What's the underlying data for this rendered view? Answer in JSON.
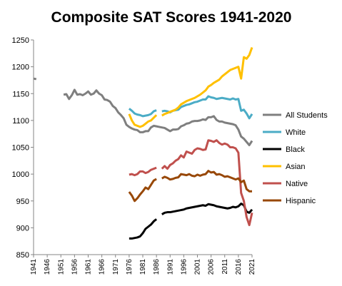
{
  "chart_data": {
    "type": "line",
    "title": "Composite SAT Scores 1941-2020",
    "xlabel": "",
    "ylabel": "",
    "xlim": [
      1941,
      2021
    ],
    "ylim": [
      850,
      1250
    ],
    "y_ticks": [
      "850",
      "900",
      "950",
      "1000",
      "1050",
      "1100",
      "1150",
      "1200",
      "1250"
    ],
    "x_ticks": [
      "1941",
      "1946",
      "1951",
      "1956",
      "1961",
      "1966",
      "1971",
      "1976",
      "1981",
      "1986",
      "1991",
      "1996",
      "2001",
      "2006",
      "2011",
      "2016",
      "2021"
    ],
    "grid": false,
    "legend_position": "right",
    "series": [
      {
        "name": "All Students",
        "color": "#7f7f7f",
        "points": [
          [
            1941,
            1178
          ],
          [
            1942,
            1177
          ],
          null,
          [
            1952,
            1148
          ],
          [
            1953,
            1149
          ],
          [
            1954,
            1140
          ],
          [
            1955,
            1147
          ],
          [
            1956,
            1157
          ],
          [
            1957,
            1148
          ],
          [
            1958,
            1149
          ],
          [
            1959,
            1147
          ],
          [
            1960,
            1150
          ],
          [
            1961,
            1154
          ],
          [
            1962,
            1148
          ],
          [
            1963,
            1150
          ],
          [
            1964,
            1156
          ],
          [
            1965,
            1150
          ],
          [
            1966,
            1147
          ],
          [
            1967,
            1139
          ],
          [
            1968,
            1138
          ],
          [
            1969,
            1135
          ],
          [
            1970,
            1127
          ],
          [
            1971,
            1123
          ],
          [
            1972,
            1115
          ],
          [
            1973,
            1110
          ],
          [
            1974,
            1104
          ],
          [
            1975,
            1092
          ],
          [
            1976,
            1088
          ],
          [
            1977,
            1085
          ],
          [
            1978,
            1083
          ],
          [
            1979,
            1082
          ],
          [
            1980,
            1078
          ],
          [
            1981,
            1078
          ],
          [
            1982,
            1080
          ],
          [
            1983,
            1080
          ],
          [
            1984,
            1087
          ],
          [
            1985,
            1090
          ],
          [
            1986,
            1089
          ],
          [
            1987,
            1088
          ],
          [
            1988,
            1087
          ],
          [
            1989,
            1086
          ],
          [
            1990,
            1083
          ],
          [
            1991,
            1080
          ],
          [
            1992,
            1083
          ],
          [
            1993,
            1083
          ],
          [
            1994,
            1084
          ],
          [
            1995,
            1089
          ],
          [
            1996,
            1091
          ],
          [
            1997,
            1094
          ],
          [
            1998,
            1095
          ],
          [
            1999,
            1098
          ],
          [
            2000,
            1099
          ],
          [
            2001,
            1099
          ],
          [
            2002,
            1100
          ],
          [
            2003,
            1102
          ],
          [
            2004,
            1101
          ],
          [
            2005,
            1106
          ],
          [
            2006,
            1106
          ],
          [
            2007,
            1108
          ],
          [
            2008,
            1101
          ],
          [
            2009,
            1098
          ],
          [
            2010,
            1098
          ],
          [
            2011,
            1096
          ],
          [
            2012,
            1095
          ],
          [
            2013,
            1094
          ],
          [
            2014,
            1093
          ],
          [
            2015,
            1091
          ],
          [
            2016,
            1083
          ],
          [
            2017,
            1070
          ],
          [
            2018,
            1066
          ],
          [
            2019,
            1060
          ],
          [
            2020,
            1054
          ],
          [
            2021,
            1062
          ]
        ]
      },
      {
        "name": "White",
        "color": "#4bacc6",
        "points": [
          [
            1976,
            1122
          ],
          [
            1977,
            1118
          ],
          [
            1978,
            1113
          ],
          [
            1979,
            1111
          ],
          [
            1980,
            1110
          ],
          [
            1981,
            1108
          ],
          [
            1982,
            1109
          ],
          [
            1983,
            1110
          ],
          [
            1984,
            1112
          ],
          [
            1985,
            1117
          ],
          [
            1986,
            1119
          ],
          null,
          [
            1988,
            1117
          ],
          [
            1989,
            1118
          ],
          [
            1990,
            1117
          ],
          [
            1991,
            1115
          ],
          [
            1992,
            1118
          ],
          [
            1993,
            1119
          ],
          [
            1994,
            1120
          ],
          [
            1995,
            1125
          ],
          [
            1996,
            1127
          ],
          [
            1997,
            1129
          ],
          [
            1998,
            1130
          ],
          [
            1999,
            1132
          ],
          [
            2000,
            1134
          ],
          [
            2001,
            1135
          ],
          [
            2002,
            1137
          ],
          [
            2003,
            1139
          ],
          [
            2004,
            1139
          ],
          [
            2005,
            1145
          ],
          [
            2006,
            1143
          ],
          [
            2007,
            1142
          ],
          [
            2008,
            1140
          ],
          [
            2009,
            1141
          ],
          [
            2010,
            1142
          ],
          [
            2011,
            1141
          ],
          [
            2012,
            1140
          ],
          [
            2013,
            1139
          ],
          [
            2014,
            1141
          ],
          [
            2015,
            1139
          ],
          [
            2016,
            1140
          ],
          [
            2017,
            1118
          ],
          [
            2018,
            1120
          ],
          [
            2019,
            1113
          ],
          [
            2020,
            1104
          ],
          [
            2021,
            1112
          ]
        ]
      },
      {
        "name": "Black",
        "color": "#000000",
        "points": [
          [
            1976,
            880
          ],
          [
            1977,
            880
          ],
          [
            1978,
            881
          ],
          [
            1979,
            882
          ],
          [
            1980,
            884
          ],
          [
            1981,
            890
          ],
          [
            1982,
            898
          ],
          [
            1983,
            902
          ],
          [
            1984,
            906
          ],
          [
            1985,
            912
          ],
          [
            1986,
            916
          ],
          null,
          [
            1988,
            925
          ],
          [
            1989,
            928
          ],
          [
            1990,
            929
          ],
          [
            1991,
            929
          ],
          [
            1992,
            930
          ],
          [
            1993,
            931
          ],
          [
            1994,
            932
          ],
          [
            1995,
            933
          ],
          [
            1996,
            934
          ],
          [
            1997,
            936
          ],
          [
            1998,
            937
          ],
          [
            1999,
            938
          ],
          [
            2000,
            939
          ],
          [
            2001,
            940
          ],
          [
            2002,
            941
          ],
          [
            2003,
            942
          ],
          [
            2004,
            941
          ],
          [
            2005,
            944
          ],
          [
            2006,
            943
          ],
          [
            2007,
            942
          ],
          [
            2008,
            940
          ],
          [
            2009,
            939
          ],
          [
            2010,
            938
          ],
          [
            2011,
            937
          ],
          [
            2012,
            936
          ],
          [
            2013,
            937
          ],
          [
            2014,
            939
          ],
          [
            2015,
            938
          ],
          [
            2016,
            940
          ],
          [
            2017,
            945
          ],
          [
            2018,
            942
          ],
          [
            2019,
            930
          ],
          [
            2020,
            928
          ],
          [
            2021,
            934
          ]
        ]
      },
      {
        "name": "Asian",
        "color": "#ffc000",
        "points": [
          [
            1976,
            1112
          ],
          [
            1977,
            1100
          ],
          [
            1978,
            1092
          ],
          [
            1979,
            1090
          ],
          [
            1980,
            1088
          ],
          [
            1981,
            1090
          ],
          [
            1982,
            1094
          ],
          [
            1983,
            1098
          ],
          [
            1984,
            1100
          ],
          [
            1985,
            1105
          ],
          [
            1986,
            1110
          ],
          null,
          [
            1988,
            1109
          ],
          [
            1989,
            1112
          ],
          [
            1990,
            1114
          ],
          [
            1991,
            1116
          ],
          [
            1992,
            1118
          ],
          [
            1993,
            1120
          ],
          [
            1994,
            1124
          ],
          [
            1995,
            1130
          ],
          [
            1996,
            1133
          ],
          [
            1997,
            1136
          ],
          [
            1998,
            1138
          ],
          [
            1999,
            1140
          ],
          [
            2000,
            1142
          ],
          [
            2001,
            1145
          ],
          [
            2002,
            1148
          ],
          [
            2003,
            1152
          ],
          [
            2004,
            1156
          ],
          [
            2005,
            1163
          ],
          [
            2006,
            1166
          ],
          [
            2007,
            1170
          ],
          [
            2008,
            1173
          ],
          [
            2009,
            1176
          ],
          [
            2010,
            1182
          ],
          [
            2011,
            1186
          ],
          [
            2012,
            1190
          ],
          [
            2013,
            1194
          ],
          [
            2014,
            1196
          ],
          [
            2015,
            1198
          ],
          [
            2016,
            1200
          ],
          [
            2017,
            1178
          ],
          [
            2018,
            1218
          ],
          [
            2019,
            1215
          ],
          [
            2020,
            1222
          ],
          [
            2021,
            1236
          ]
        ]
      },
      {
        "name": "Native",
        "color": "#c0504d",
        "points": [
          [
            1976,
            999
          ],
          [
            1977,
            1000
          ],
          [
            1978,
            998
          ],
          [
            1979,
            1000
          ],
          [
            1980,
            1005
          ],
          [
            1981,
            1005
          ],
          [
            1982,
            1002
          ],
          [
            1983,
            1004
          ],
          [
            1984,
            1008
          ],
          [
            1985,
            1010
          ],
          [
            1986,
            1012
          ],
          null,
          [
            1988,
            1010
          ],
          [
            1989,
            1015
          ],
          [
            1990,
            1010
          ],
          [
            1991,
            1017
          ],
          [
            1992,
            1020
          ],
          [
            1993,
            1025
          ],
          [
            1994,
            1028
          ],
          [
            1995,
            1035
          ],
          [
            1996,
            1031
          ],
          [
            1997,
            1042
          ],
          [
            1998,
            1040
          ],
          [
            1999,
            1038
          ],
          [
            2000,
            1045
          ],
          [
            2001,
            1048
          ],
          [
            2002,
            1047
          ],
          [
            2003,
            1045
          ],
          [
            2004,
            1046
          ],
          [
            2005,
            1063
          ],
          [
            2006,
            1062
          ],
          [
            2007,
            1060
          ],
          [
            2008,
            1063
          ],
          [
            2009,
            1058
          ],
          [
            2010,
            1055
          ],
          [
            2011,
            1057
          ],
          [
            2012,
            1055
          ],
          [
            2013,
            1050
          ],
          [
            2014,
            1050
          ],
          [
            2015,
            1048
          ],
          [
            2016,
            1040
          ],
          [
            2017,
            965
          ],
          [
            2018,
            950
          ],
          [
            2019,
            920
          ],
          [
            2020,
            905
          ],
          [
            2021,
            928
          ]
        ]
      },
      {
        "name": "Hispanic",
        "color": "#984807",
        "points": [
          [
            1976,
            967
          ],
          [
            1977,
            960
          ],
          [
            1978,
            950
          ],
          [
            1979,
            955
          ],
          [
            1980,
            962
          ],
          [
            1981,
            968
          ],
          [
            1982,
            975
          ],
          [
            1983,
            972
          ],
          [
            1984,
            980
          ],
          [
            1985,
            988
          ],
          [
            1986,
            991
          ],
          null,
          [
            1988,
            992
          ],
          [
            1989,
            995
          ],
          [
            1990,
            993
          ],
          [
            1991,
            990
          ],
          [
            1992,
            991
          ],
          [
            1993,
            993
          ],
          [
            1994,
            994
          ],
          [
            1995,
            1000
          ],
          [
            1996,
            999
          ],
          [
            1997,
            998
          ],
          [
            1998,
            1000
          ],
          [
            1999,
            997
          ],
          [
            2000,
            996
          ],
          [
            2001,
            999
          ],
          [
            2002,
            997
          ],
          [
            2003,
            999
          ],
          [
            2004,
            1000
          ],
          [
            2005,
            1006
          ],
          [
            2006,
            1003
          ],
          [
            2007,
            1004
          ],
          [
            2008,
            999
          ],
          [
            2009,
            1000
          ],
          [
            2010,
            998
          ],
          [
            2011,
            995
          ],
          [
            2012,
            996
          ],
          [
            2013,
            994
          ],
          [
            2014,
            992
          ],
          [
            2015,
            990
          ],
          [
            2016,
            992
          ],
          [
            2017,
            985
          ],
          [
            2018,
            988
          ],
          [
            2019,
            972
          ],
          [
            2020,
            968
          ],
          [
            2021,
            968
          ]
        ]
      }
    ]
  }
}
